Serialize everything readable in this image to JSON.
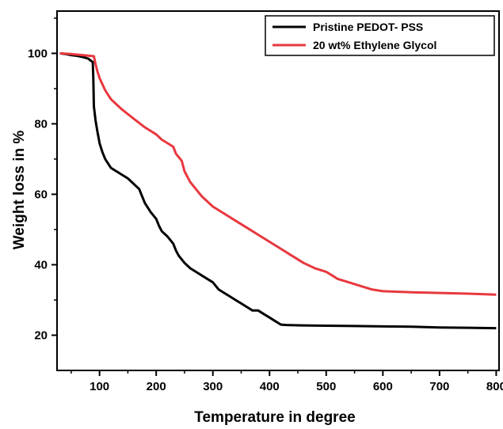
{
  "chart_data": {
    "type": "line",
    "title": "",
    "xlabel": "Temperature in degree",
    "ylabel": "Weight loss in %",
    "xlim": [
      25,
      805
    ],
    "ylim": [
      10,
      112
    ],
    "x_ticks": [
      100,
      200,
      300,
      400,
      500,
      600,
      700,
      800
    ],
    "y_ticks": [
      20,
      40,
      60,
      80,
      100
    ],
    "grid": false,
    "legend_position": "top-right",
    "series": [
      {
        "name": "Pristine PEDOT- PSS",
        "color": "#000000",
        "x": [
          30,
          40,
          50,
          60,
          70,
          80,
          88,
          89,
          90,
          93,
          96,
          100,
          105,
          110,
          120,
          130,
          140,
          150,
          160,
          170,
          180,
          190,
          200,
          205,
          210,
          220,
          230,
          235,
          240,
          250,
          260,
          270,
          280,
          290,
          300,
          310,
          320,
          330,
          340,
          350,
          360,
          370,
          380,
          390,
          400,
          410,
          420,
          430,
          450,
          500,
          550,
          600,
          650,
          700,
          750,
          800
        ],
        "y": [
          100,
          99.8,
          99.5,
          99.3,
          99,
          98.5,
          97.5,
          93,
          85,
          81,
          78,
          74.5,
          72,
          70,
          67.5,
          66.5,
          65.5,
          64.5,
          63,
          61.5,
          57.5,
          55,
          53,
          51,
          49.5,
          48,
          46,
          44,
          42.5,
          40.5,
          39,
          38,
          37,
          36,
          35,
          33,
          32,
          31,
          30,
          29,
          28,
          27,
          27,
          26,
          25,
          24,
          23,
          22.9,
          22.8,
          22.7,
          22.6,
          22.5,
          22.4,
          22.2,
          22.1,
          22
        ]
      },
      {
        "name": "20 wt% Ethylene Glycol",
        "color": "#e8383f",
        "x": [
          30,
          50,
          70,
          90,
          93,
          96,
          100,
          110,
          120,
          140,
          160,
          180,
          200,
          210,
          220,
          230,
          235,
          240,
          245,
          250,
          255,
          260,
          270,
          280,
          290,
          300,
          320,
          340,
          360,
          380,
          400,
          420,
          440,
          460,
          480,
          500,
          510,
          520,
          540,
          560,
          580,
          600,
          650,
          700,
          750,
          800
        ],
        "y": [
          100,
          99.8,
          99.5,
          99.2,
          97,
          95,
          93,
          89.5,
          87,
          84,
          81.5,
          79,
          77,
          75.5,
          74.5,
          73.5,
          71.5,
          70.5,
          69.5,
          66.5,
          65,
          63.5,
          61.5,
          59.5,
          58,
          56.5,
          54.5,
          52.5,
          50.5,
          48.5,
          46.5,
          44.5,
          42.5,
          40.5,
          39,
          38,
          37,
          36,
          35,
          34,
          33,
          32.5,
          32.2,
          32,
          31.8,
          31.5
        ]
      }
    ]
  }
}
